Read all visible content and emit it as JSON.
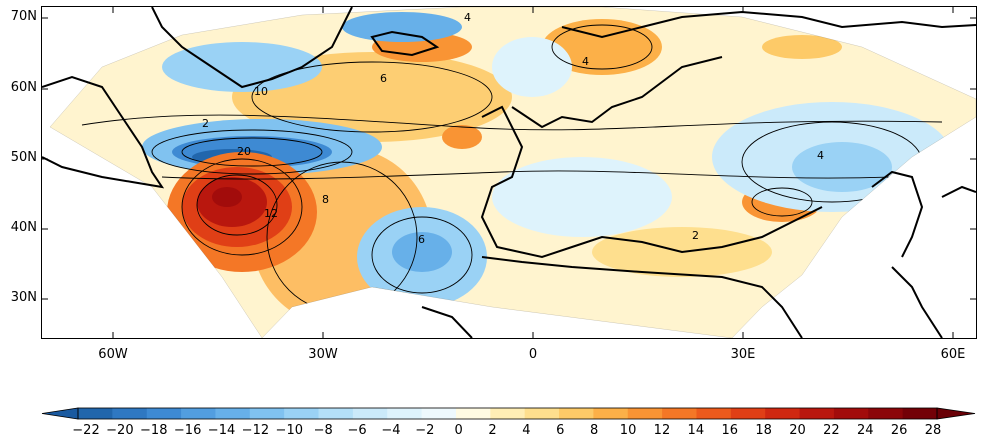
{
  "y_ticks": [
    "70N",
    "60N",
    "50N",
    "40N",
    "30N"
  ],
  "x_ticks": [
    "60W",
    "30W",
    "0",
    "30E",
    "60E"
  ],
  "colorbar": {
    "ticks": [
      "−22",
      "−20",
      "−18",
      "−16",
      "−14",
      "−12",
      "−10",
      "−8",
      "−6",
      "−4",
      "−2",
      "0",
      "2",
      "4",
      "6",
      "8",
      "10",
      "12",
      "14",
      "16",
      "18",
      "20",
      "22",
      "24",
      "26",
      "28"
    ],
    "colors": [
      "#2166ac",
      "#2f78c2",
      "#3e8ad3",
      "#529ee0",
      "#67b0e9",
      "#80c2f0",
      "#9ad2f5",
      "#b4e0f8",
      "#cbeafa",
      "#def3fc",
      "#eef9fd",
      "#fffbe3",
      "#ffeeb5",
      "#fedf8e",
      "#fdca68",
      "#fcb048",
      "#f99434",
      "#f47726",
      "#ec5a1c",
      "#e03f16",
      "#cf2811",
      "#b9170e",
      "#a20c0b",
      "#8b0609",
      "#730107"
    ],
    "extend": "both"
  },
  "contour_labels": [
    "4",
    "6",
    "10",
    "20",
    "8",
    "2",
    "12",
    "6",
    "4",
    "2",
    "4"
  ]
}
